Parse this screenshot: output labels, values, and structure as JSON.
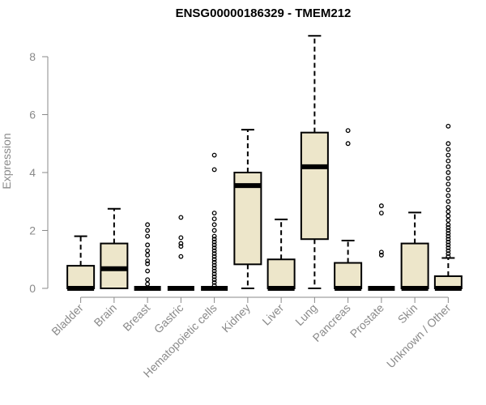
{
  "chart_data": {
    "type": "boxplot",
    "title": "ENSG00000186329 - TMEM212",
    "xlabel": "",
    "ylabel": "Expression",
    "ylim": [
      0,
      8.8
    ],
    "yticks": [
      0,
      2,
      4,
      6,
      8
    ],
    "grid": false,
    "colors": {
      "box_fill": "#ede6ca",
      "box_stroke": "#000000",
      "axis": "#8a8a8a",
      "title": "#000000"
    },
    "categories": [
      "Bladder",
      "Brain",
      "Breast",
      "Gastric",
      "Hematopoietic cells",
      "Kidney",
      "Liver",
      "Lung",
      "Pancreas",
      "Prostate",
      "Skin",
      "Unknown / Other"
    ],
    "boxes": [
      {
        "q1": 0.0,
        "median": 0.0,
        "q3": 0.78,
        "whisker_low": 0.0,
        "whisker_high": 1.8,
        "outliers": []
      },
      {
        "q1": 0.0,
        "median": 0.68,
        "q3": 1.55,
        "whisker_low": 0.0,
        "whisker_high": 2.75,
        "outliers": []
      },
      {
        "q1": 0.0,
        "median": 0.0,
        "q3": 0.0,
        "whisker_low": 0.0,
        "whisker_high": 0.0,
        "outliers": [
          0.15,
          0.3,
          0.6,
          0.85,
          0.95,
          1.15,
          1.3,
          1.5,
          1.8,
          2.0,
          2.2
        ]
      },
      {
        "q1": 0.0,
        "median": 0.0,
        "q3": 0.0,
        "whisker_low": 0.0,
        "whisker_high": 0.0,
        "outliers": [
          1.1,
          1.45,
          1.55,
          1.75,
          2.45
        ]
      },
      {
        "q1": 0.0,
        "median": 0.0,
        "q3": 0.0,
        "whisker_low": 0.0,
        "whisker_high": 0.0,
        "outliers": [
          0.1,
          0.2,
          0.3,
          0.4,
          0.5,
          0.6,
          0.7,
          0.8,
          0.9,
          1.0,
          1.1,
          1.2,
          1.3,
          1.4,
          1.5,
          1.6,
          1.7,
          1.8,
          2.0,
          2.2,
          2.4,
          2.6,
          4.1,
          4.6
        ]
      },
      {
        "q1": 0.83,
        "median": 3.55,
        "q3": 4.0,
        "whisker_low": 0.0,
        "whisker_high": 5.48,
        "outliers": []
      },
      {
        "q1": 0.0,
        "median": 0.0,
        "q3": 1.0,
        "whisker_low": 0.0,
        "whisker_high": 2.38,
        "outliers": []
      },
      {
        "q1": 1.7,
        "median": 4.2,
        "q3": 5.38,
        "whisker_low": 0.0,
        "whisker_high": 8.72,
        "outliers": []
      },
      {
        "q1": 0.0,
        "median": 0.0,
        "q3": 0.88,
        "whisker_low": 0.0,
        "whisker_high": 1.65,
        "outliers": [
          5.0,
          5.45
        ]
      },
      {
        "q1": 0.0,
        "median": 0.0,
        "q3": 0.0,
        "whisker_low": 0.0,
        "whisker_high": 0.0,
        "outliers": [
          1.15,
          1.25,
          2.6,
          2.85
        ]
      },
      {
        "q1": 0.0,
        "median": 0.0,
        "q3": 1.55,
        "whisker_low": 0.0,
        "whisker_high": 2.62,
        "outliers": []
      },
      {
        "q1": 0.0,
        "median": 0.0,
        "q3": 0.42,
        "whisker_low": 0.0,
        "whisker_high": 1.05,
        "outliers": [
          1.1,
          1.2,
          1.3,
          1.4,
          1.5,
          1.6,
          1.7,
          1.8,
          1.9,
          2.0,
          2.1,
          2.2,
          2.35,
          2.5,
          2.65,
          2.8,
          3.0,
          3.2,
          3.4,
          3.6,
          3.8,
          4.0,
          4.2,
          4.4,
          4.6,
          4.8,
          5.0,
          5.6
        ]
      }
    ]
  }
}
